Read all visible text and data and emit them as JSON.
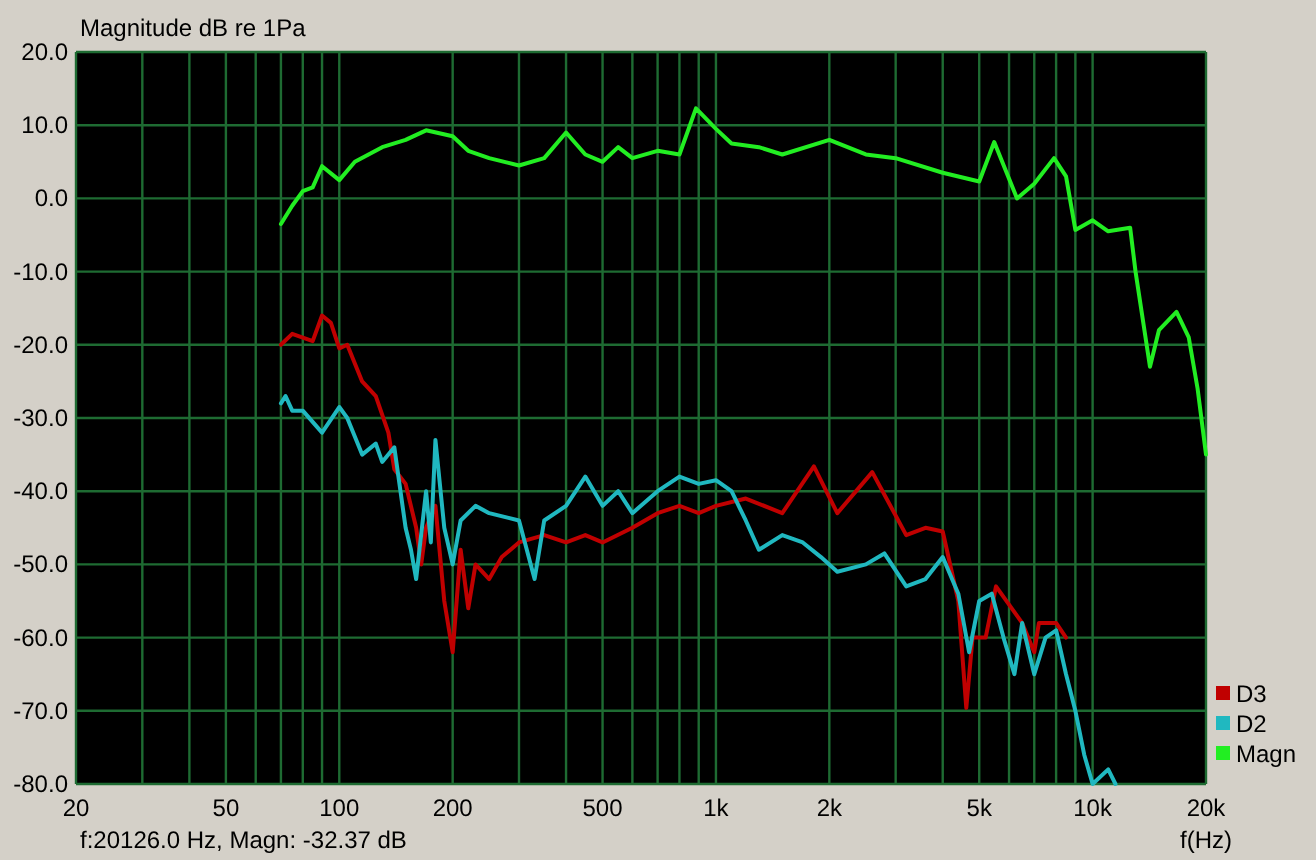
{
  "chart_data": {
    "type": "line",
    "ylabel": "Magnitude dB re 1Pa",
    "xlabel": "f(Hz)",
    "log": "x",
    "grid": true,
    "legend": "bottom right",
    "xlim": [
      20,
      20000
    ],
    "ylim": [
      -80,
      20
    ],
    "xticks": [
      20,
      {
        "value": 30,
        "label": null
      },
      {
        "value": 40,
        "label": null
      },
      50,
      {
        "value": 60,
        "label": null
      },
      {
        "value": 70,
        "label": null
      },
      {
        "value": 80,
        "label": null
      },
      {
        "value": 90,
        "label": null
      },
      100,
      200,
      {
        "value": 300,
        "label": null
      },
      {
        "value": 400,
        "label": null
      },
      500,
      {
        "value": 600,
        "label": null
      },
      {
        "value": 700,
        "label": null
      },
      {
        "value": 800,
        "label": null
      },
      {
        "value": 900,
        "label": null
      },
      {
        "value": 1000,
        "label": "1k"
      },
      {
        "value": 2000,
        "label": "2k"
      },
      {
        "value": 3000,
        "label": null
      },
      {
        "value": 4000,
        "label": null
      },
      {
        "value": 5000,
        "label": "5k"
      },
      {
        "value": 6000,
        "label": null
      },
      {
        "value": 7000,
        "label": null
      },
      {
        "value": 8000,
        "label": null
      },
      {
        "value": 9000,
        "label": null
      },
      {
        "value": 10000,
        "label": "10k"
      },
      {
        "value": 20000,
        "label": "20k"
      }
    ],
    "yticks": [
      {
        "value": 20,
        "label": "20.0"
      },
      {
        "value": 10,
        "label": "10.0"
      },
      {
        "value": 0,
        "label": "0.0"
      },
      {
        "value": -10,
        "label": "-10.0"
      },
      {
        "value": -20,
        "label": "-20.0"
      },
      {
        "value": -30,
        "label": "-30.0"
      },
      {
        "value": -40,
        "label": "-40.0"
      },
      {
        "value": -50,
        "label": "-50.0"
      },
      {
        "value": -60,
        "label": "-60.0"
      },
      {
        "value": -70,
        "label": "-70.0"
      },
      {
        "value": -80,
        "label": "-80.0"
      }
    ],
    "annotations": [
      "f:20126.0 Hz, Magn: -32.37 dB"
    ],
    "series": [
      {
        "name": "D3",
        "color": "#c00000",
        "x": [
          70,
          75,
          85,
          90,
          95,
          100,
          105,
          115,
          125,
          135,
          140,
          150,
          160,
          165,
          170,
          180,
          190,
          200,
          210,
          220,
          230,
          250,
          270,
          300,
          350,
          400,
          450,
          500,
          600,
          700,
          800,
          900,
          1000,
          1200,
          1500,
          1820,
          2100,
          2600,
          3200,
          3600,
          4000,
          4400,
          4620,
          4800,
          5200,
          5540,
          6500,
          7000,
          7200,
          8000,
          8500
        ],
        "values": [
          -20,
          -18.5,
          -19.5,
          -16,
          -17,
          -20.5,
          -20,
          -25,
          -27,
          -32,
          -37,
          -39,
          -45,
          -50,
          -45,
          -42,
          -55,
          -62,
          -48,
          -56,
          -50,
          -52,
          -49,
          -47,
          -46,
          -47,
          -46,
          -47,
          -45,
          -43,
          -42,
          -43,
          -42,
          -41,
          -43,
          -36.6,
          -43,
          -37.4,
          -46,
          -45,
          -45.5,
          -55,
          -69.6,
          -60,
          -60,
          -53,
          -58,
          -62,
          -58,
          -58,
          -60
        ]
      },
      {
        "name": "D2",
        "color": "#20b8c0",
        "x": [
          70,
          72,
          75,
          80,
          90,
          100,
          105,
          115,
          125,
          130,
          140,
          150,
          155,
          160,
          170,
          175,
          180,
          190,
          200,
          210,
          230,
          250,
          300,
          330,
          350,
          400,
          450,
          500,
          550,
          600,
          700,
          800,
          900,
          1000,
          1100,
          1200,
          1300,
          1500,
          1700,
          1900,
          2100,
          2500,
          2800,
          3200,
          3600,
          4000,
          4400,
          4700,
          5000,
          5400,
          5800,
          6200,
          6500,
          7000,
          7500,
          8000,
          8500,
          9000,
          9500,
          10000,
          11000,
          11500
        ],
        "values": [
          -28,
          -27,
          -29,
          -29,
          -32,
          -28.5,
          -30,
          -35,
          -33.5,
          -36,
          -34,
          -45,
          -48,
          -52,
          -40,
          -47,
          -33,
          -45,
          -50,
          -44,
          -42,
          -43,
          -44,
          -52,
          -44,
          -42,
          -38,
          -42,
          -40,
          -43,
          -40,
          -38,
          -39,
          -38.5,
          -40,
          -44,
          -48,
          -46,
          -47,
          -49,
          -51,
          -50,
          -48.5,
          -53,
          -52,
          -49,
          -54,
          -62,
          -55,
          -54,
          -60,
          -65,
          -58,
          -65,
          -60,
          -59,
          -65,
          -70,
          -76,
          -80,
          -78,
          -80
        ]
      },
      {
        "name": "Magn",
        "color": "#22ee22",
        "x": [
          70,
          75,
          80,
          85,
          90,
          100,
          110,
          130,
          150,
          170,
          200,
          220,
          250,
          300,
          350,
          400,
          450,
          500,
          550,
          600,
          700,
          800,
          885,
          1000,
          1100,
          1300,
          1500,
          2000,
          2500,
          3000,
          4000,
          5000,
          5480,
          6300,
          7000,
          7900,
          8500,
          9000,
          10000,
          11000,
          12580,
          13000,
          14200,
          15000,
          16700,
          18000,
          19000,
          20000
        ],
        "values": [
          -3.5,
          -1,
          1,
          1.5,
          4.4,
          2.5,
          5,
          7,
          8,
          9.3,
          8.5,
          6.5,
          5.5,
          4.5,
          5.5,
          9,
          6,
          5,
          7,
          5.5,
          6.5,
          6,
          12.3,
          9.5,
          7.5,
          7,
          6,
          8,
          6,
          5.5,
          3.5,
          2.3,
          7.7,
          0,
          2,
          5.5,
          3,
          -4.3,
          -3,
          -4.5,
          -4,
          -10,
          -23,
          -18,
          -15.5,
          -19,
          -26,
          -35
        ]
      }
    ]
  }
}
